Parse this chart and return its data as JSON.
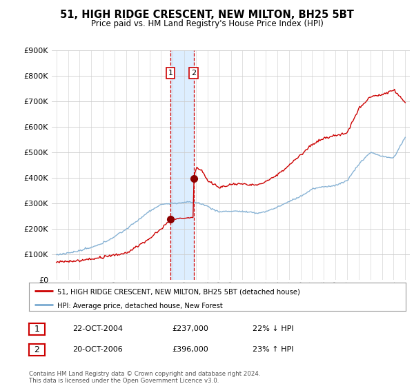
{
  "title": "51, HIGH RIDGE CRESCENT, NEW MILTON, BH25 5BT",
  "subtitle": "Price paid vs. HM Land Registry's House Price Index (HPI)",
  "legend_line1": "51, HIGH RIDGE CRESCENT, NEW MILTON, BH25 5BT (detached house)",
  "legend_line2": "HPI: Average price, detached house, New Forest",
  "transaction1_date": "22-OCT-2004",
  "transaction1_price": "£237,000",
  "transaction1_hpi": "22% ↓ HPI",
  "transaction2_date": "20-OCT-2006",
  "transaction2_price": "£396,000",
  "transaction2_hpi": "23% ↑ HPI",
  "footnote": "Contains HM Land Registry data © Crown copyright and database right 2024.\nThis data is licensed under the Open Government Licence v3.0.",
  "ylim": [
    0,
    900000
  ],
  "yticks": [
    0,
    100000,
    200000,
    300000,
    400000,
    500000,
    600000,
    700000,
    800000,
    900000
  ],
  "hpi_color": "#7aaad0",
  "price_color": "#cc0000",
  "highlight_color": "#ddeeff",
  "vline_color": "#cc0000",
  "background_color": "#ffffff",
  "grid_color": "#cccccc",
  "transaction1_year": 2004.8,
  "transaction2_year": 2006.8,
  "transaction1_price_val": 237000,
  "transaction2_price_val": 396000,
  "label_border_color": "#cc0000"
}
